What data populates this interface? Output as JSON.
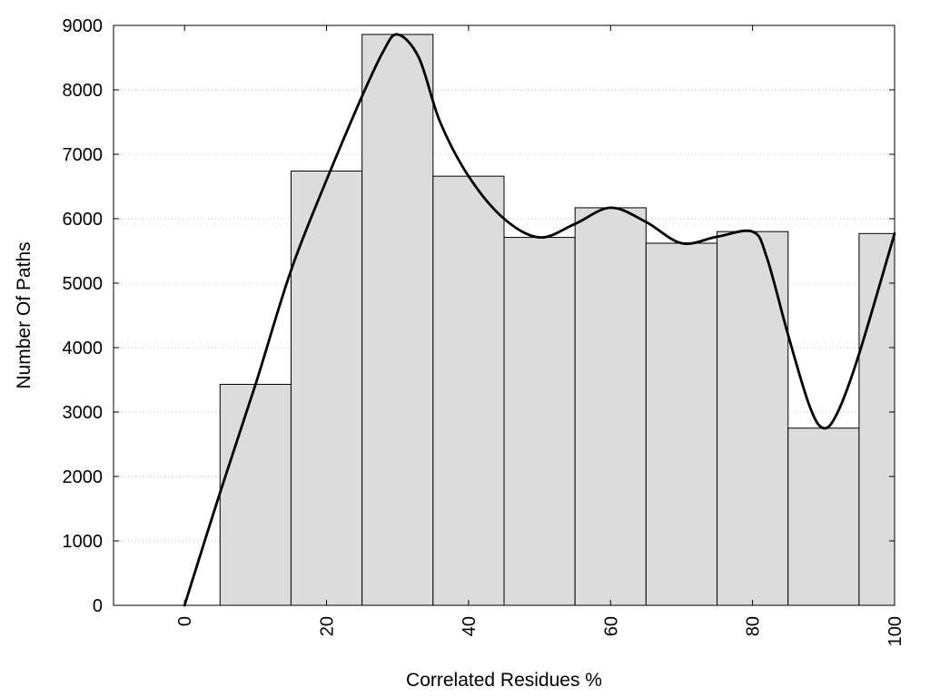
{
  "chart_data": {
    "type": "bar",
    "title": "",
    "xlabel": "Correlated Residues %",
    "ylabel": "Number Of Paths",
    "xlim": [
      -10,
      100
    ],
    "ylim": [
      0,
      9000
    ],
    "grid": true,
    "x_ticks": [
      0,
      20,
      40,
      60,
      80,
      100
    ],
    "x_tick_labels": [
      "0",
      "20",
      "40",
      "60",
      "80",
      "100"
    ],
    "y_ticks": [
      0,
      1000,
      2000,
      3000,
      4000,
      5000,
      6000,
      7000,
      8000,
      9000
    ],
    "y_tick_labels": [
      "0",
      "1000",
      "2000",
      "3000",
      "4000",
      "5000",
      "6000",
      "7000",
      "8000",
      "9000"
    ],
    "bin_width": 10,
    "bins": [
      {
        "center": 10,
        "value": 3430
      },
      {
        "center": 20,
        "value": 6740
      },
      {
        "center": 30,
        "value": 8860
      },
      {
        "center": 40,
        "value": 6660
      },
      {
        "center": 50,
        "value": 5710
      },
      {
        "center": 60,
        "value": 6170
      },
      {
        "center": 70,
        "value": 5620
      },
      {
        "center": 80,
        "value": 5800
      },
      {
        "center": 90,
        "value": 2750
      },
      {
        "center": 100,
        "value": 5770
      }
    ],
    "bar_color": "#dcdcdc",
    "curve": {
      "color": "#000000",
      "points": [
        [
          0,
          0
        ],
        [
          5,
          1750
        ],
        [
          10,
          3430
        ],
        [
          15,
          5200
        ],
        [
          20,
          6600
        ],
        [
          25,
          7900
        ],
        [
          28,
          8600
        ],
        [
          30,
          8860
        ],
        [
          33,
          8500
        ],
        [
          36,
          7500
        ],
        [
          40,
          6660
        ],
        [
          45,
          6000
        ],
        [
          50,
          5710
        ],
        [
          55,
          5920
        ],
        [
          60,
          6170
        ],
        [
          65,
          5950
        ],
        [
          70,
          5620
        ],
        [
          75,
          5720
        ],
        [
          80,
          5800
        ],
        [
          82,
          5400
        ],
        [
          85,
          4200
        ],
        [
          88,
          3100
        ],
        [
          90,
          2750
        ],
        [
          92,
          3000
        ],
        [
          95,
          3900
        ],
        [
          100,
          5770
        ]
      ]
    }
  }
}
